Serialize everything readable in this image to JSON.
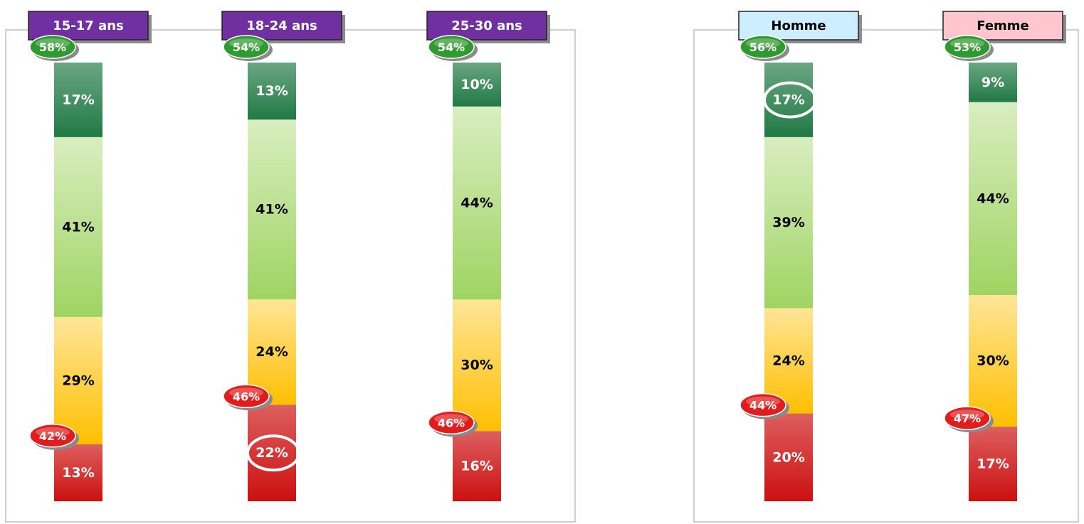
{
  "chart_data": [
    {
      "type": "bar",
      "stacked": true,
      "categories": [
        "15-17 ans",
        "18-24 ans",
        "25-30 ans"
      ],
      "header_color": "#7030a0",
      "header_text_color": "#ffffff",
      "ylim": [
        0,
        100
      ],
      "series": [
        {
          "color": "#217a45",
          "values": [
            17,
            13,
            10
          ]
        },
        {
          "color": "#9fd462",
          "values": [
            41,
            41,
            44
          ]
        },
        {
          "color": "#ffbf00",
          "values": [
            29,
            24,
            30
          ]
        },
        {
          "color": "#cc1010",
          "values": [
            13,
            22,
            16
          ]
        }
      ],
      "top_totals": [
        58,
        54,
        54
      ],
      "bottom_totals": [
        42,
        46,
        46
      ],
      "circled": {
        "series": 3,
        "category": 1
      }
    },
    {
      "type": "bar",
      "stacked": true,
      "categories": [
        "Homme",
        "Femme"
      ],
      "header_colors": [
        "#cdeeff",
        "#ffc7cd"
      ],
      "header_text_color": "#000000",
      "ylim": [
        0,
        100
      ],
      "series": [
        {
          "color": "#217a45",
          "values": [
            17,
            9
          ]
        },
        {
          "color": "#9fd462",
          "values": [
            39,
            44
          ]
        },
        {
          "color": "#ffbf00",
          "values": [
            24,
            30
          ]
        },
        {
          "color": "#cc1010",
          "values": [
            20,
            17
          ]
        }
      ],
      "top_totals": [
        56,
        53
      ],
      "bottom_totals": [
        44,
        47
      ],
      "circled": {
        "series": 0,
        "category": 0
      }
    }
  ]
}
